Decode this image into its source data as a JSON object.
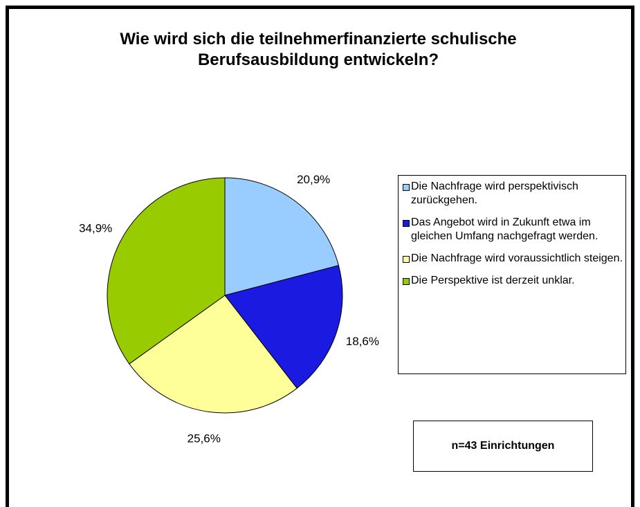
{
  "chart_data": {
    "type": "pie",
    "title": "Wie wird sich die teilnehmerfinanzierte schulische Berufsausbildung entwickeln?",
    "categories": [
      "Die Nachfrage wird perspektivisch zurückgehen.",
      "Das Angebot wird in Zukunft etwa im gleichen Umfang nachgefragt werden.",
      "Die Nachfrage wird voraussichtlich steigen.",
      "Die Perspektive ist derzeit unklar."
    ],
    "values": [
      20.9,
      18.6,
      25.6,
      34.9
    ],
    "value_labels": [
      "20,9%",
      "18,6%",
      "25,6%",
      "34,9%"
    ],
    "colors": [
      "#99ccff",
      "#1a1ae0",
      "#ffff99",
      "#99cc00"
    ],
    "annotation": "n=43 Einrichtungen",
    "legend": "right"
  }
}
